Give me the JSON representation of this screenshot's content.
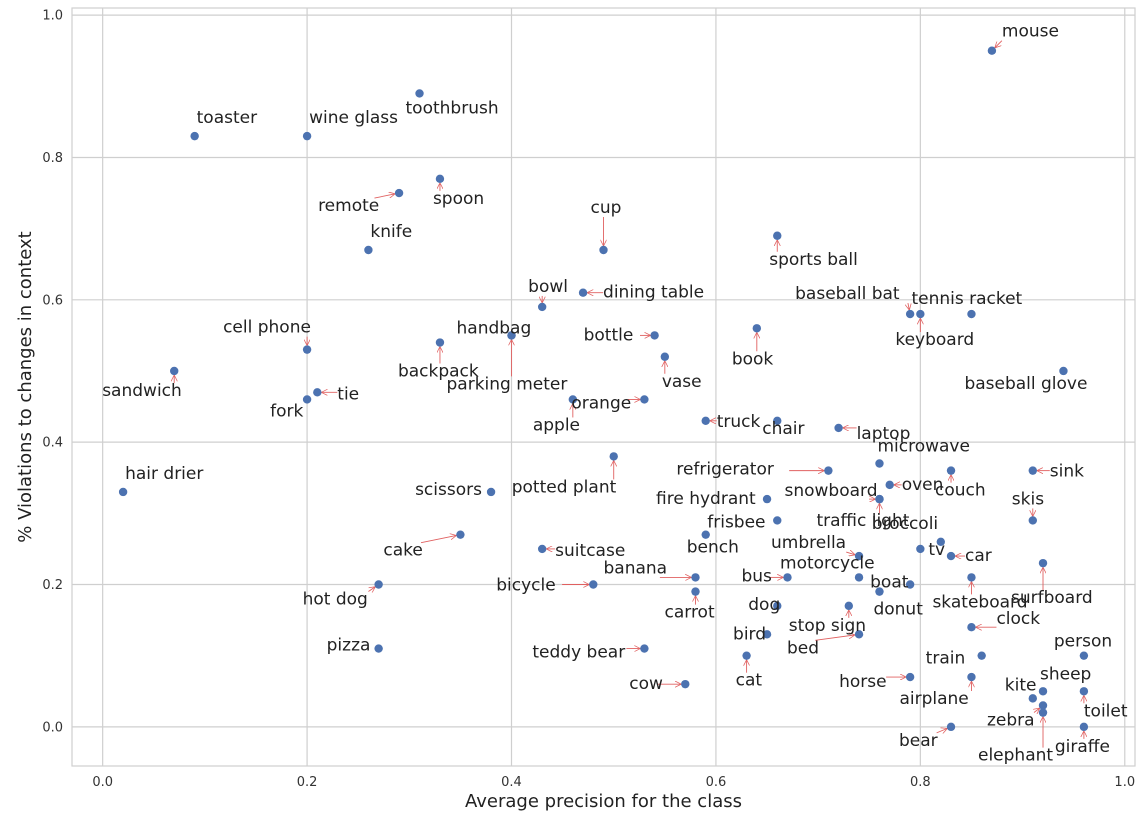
{
  "chart_data": {
    "type": "scatter",
    "title": "",
    "xlabel": "Average precision for the class",
    "ylabel": "% Violations to changes in context",
    "xlim": [
      -0.03,
      1.01
    ],
    "ylim": [
      -0.055,
      1.01
    ],
    "xticks": [
      "0.0",
      "0.2",
      "0.4",
      "0.6",
      "0.8",
      "1.0"
    ],
    "xtick_values": [
      0.0,
      0.2,
      0.4,
      0.6,
      0.8,
      1.0
    ],
    "yticks": [
      "0.0",
      "0.2",
      "0.4",
      "0.6",
      "0.8",
      "1.0"
    ],
    "ytick_values": [
      0.0,
      0.2,
      0.4,
      0.6,
      0.8,
      1.0
    ],
    "grid": true,
    "colors": {
      "point": "#4c72b0",
      "arrow": "#e06060",
      "grid": "#cfcfcf"
    },
    "points": [
      {
        "label": "mouse",
        "x": 0.87,
        "y": 0.95
      },
      {
        "label": "toothbrush",
        "x": 0.31,
        "y": 0.89
      },
      {
        "label": "toaster",
        "x": 0.09,
        "y": 0.83
      },
      {
        "label": "wine glass",
        "x": 0.2,
        "y": 0.83
      },
      {
        "label": "spoon",
        "x": 0.33,
        "y": 0.77
      },
      {
        "label": "remote",
        "x": 0.29,
        "y": 0.75
      },
      {
        "label": "sports ball",
        "x": 0.66,
        "y": 0.69
      },
      {
        "label": "knife",
        "x": 0.26,
        "y": 0.67
      },
      {
        "label": "cup",
        "x": 0.49,
        "y": 0.67
      },
      {
        "label": "dining table",
        "x": 0.47,
        "y": 0.61
      },
      {
        "label": "bowl",
        "x": 0.43,
        "y": 0.59
      },
      {
        "label": "baseball bat",
        "x": 0.79,
        "y": 0.58
      },
      {
        "label": "keyboard",
        "x": 0.8,
        "y": 0.58
      },
      {
        "label": "tennis racket",
        "x": 0.85,
        "y": 0.58
      },
      {
        "label": "book",
        "x": 0.64,
        "y": 0.56
      },
      {
        "label": "handbag",
        "x": 0.4,
        "y": 0.55
      },
      {
        "label": "parking meter",
        "x": 0.4,
        "y": 0.55
      },
      {
        "label": "bottle",
        "x": 0.54,
        "y": 0.55
      },
      {
        "label": "backpack",
        "x": 0.33,
        "y": 0.54
      },
      {
        "label": "cell phone",
        "x": 0.2,
        "y": 0.53
      },
      {
        "label": "vase",
        "x": 0.55,
        "y": 0.52
      },
      {
        "label": "sandwich",
        "x": 0.07,
        "y": 0.5
      },
      {
        "label": "baseball glove",
        "x": 0.94,
        "y": 0.5
      },
      {
        "label": "tie",
        "x": 0.21,
        "y": 0.47
      },
      {
        "label": "fork",
        "x": 0.2,
        "y": 0.46
      },
      {
        "label": "apple",
        "x": 0.46,
        "y": 0.46
      },
      {
        "label": "orange",
        "x": 0.53,
        "y": 0.46
      },
      {
        "label": "truck",
        "x": 0.59,
        "y": 0.43
      },
      {
        "label": "chair",
        "x": 0.66,
        "y": 0.43
      },
      {
        "label": "laptop",
        "x": 0.72,
        "y": 0.42
      },
      {
        "label": "potted plant",
        "x": 0.5,
        "y": 0.38
      },
      {
        "label": "microwave",
        "x": 0.76,
        "y": 0.37
      },
      {
        "label": "refrigerator",
        "x": 0.71,
        "y": 0.36
      },
      {
        "label": "couch",
        "x": 0.83,
        "y": 0.36
      },
      {
        "label": "sink",
        "x": 0.91,
        "y": 0.36
      },
      {
        "label": "oven",
        "x": 0.77,
        "y": 0.34
      },
      {
        "label": "hair drier",
        "x": 0.02,
        "y": 0.33
      },
      {
        "label": "scissors",
        "x": 0.38,
        "y": 0.33
      },
      {
        "label": "fire hydrant",
        "x": 0.65,
        "y": 0.32
      },
      {
        "label": "snowboard",
        "x": 0.76,
        "y": 0.32
      },
      {
        "label": "traffic light",
        "x": 0.76,
        "y": 0.32
      },
      {
        "label": "frisbee",
        "x": 0.66,
        "y": 0.29
      },
      {
        "label": "skis",
        "x": 0.91,
        "y": 0.29
      },
      {
        "label": "cake",
        "x": 0.35,
        "y": 0.27
      },
      {
        "label": "bench",
        "x": 0.59,
        "y": 0.27
      },
      {
        "label": "broccoli",
        "x": 0.82,
        "y": 0.26
      },
      {
        "label": "suitcase",
        "x": 0.43,
        "y": 0.25
      },
      {
        "label": "tv",
        "x": 0.8,
        "y": 0.25
      },
      {
        "label": "umbrella",
        "x": 0.74,
        "y": 0.24
      },
      {
        "label": "car",
        "x": 0.83,
        "y": 0.24
      },
      {
        "label": "surfboard",
        "x": 0.92,
        "y": 0.23
      },
      {
        "label": "banana",
        "x": 0.58,
        "y": 0.21
      },
      {
        "label": "bus",
        "x": 0.67,
        "y": 0.21
      },
      {
        "label": "motorcycle",
        "x": 0.74,
        "y": 0.21
      },
      {
        "label": "skateboard",
        "x": 0.85,
        "y": 0.21
      },
      {
        "label": "hot dog",
        "x": 0.27,
        "y": 0.2
      },
      {
        "label": "bicycle",
        "x": 0.48,
        "y": 0.2
      },
      {
        "label": "boat",
        "x": 0.79,
        "y": 0.2
      },
      {
        "label": "carrot",
        "x": 0.58,
        "y": 0.19
      },
      {
        "label": "donut",
        "x": 0.76,
        "y": 0.19
      },
      {
        "label": "dog",
        "x": 0.66,
        "y": 0.17
      },
      {
        "label": "stop sign",
        "x": 0.73,
        "y": 0.17
      },
      {
        "label": "clock",
        "x": 0.85,
        "y": 0.14
      },
      {
        "label": "bird",
        "x": 0.65,
        "y": 0.13
      },
      {
        "label": "bed",
        "x": 0.74,
        "y": 0.13
      },
      {
        "label": "pizza",
        "x": 0.27,
        "y": 0.11
      },
      {
        "label": "teddy bear",
        "x": 0.53,
        "y": 0.11
      },
      {
        "label": "cat",
        "x": 0.63,
        "y": 0.1
      },
      {
        "label": "train",
        "x": 0.86,
        "y": 0.1
      },
      {
        "label": "person",
        "x": 0.96,
        "y": 0.1
      },
      {
        "label": "horse",
        "x": 0.79,
        "y": 0.07
      },
      {
        "label": "airplane",
        "x": 0.85,
        "y": 0.07
      },
      {
        "label": "cow",
        "x": 0.57,
        "y": 0.06
      },
      {
        "label": "sheep",
        "x": 0.92,
        "y": 0.05
      },
      {
        "label": "toilet",
        "x": 0.96,
        "y": 0.05
      },
      {
        "label": "kite",
        "x": 0.91,
        "y": 0.04
      },
      {
        "label": "zebra",
        "x": 0.92,
        "y": 0.03
      },
      {
        "label": "elephant",
        "x": 0.92,
        "y": 0.02
      },
      {
        "label": "bear",
        "x": 0.83,
        "y": 0.0
      },
      {
        "label": "giraffe",
        "x": 0.96,
        "y": 0.0
      }
    ]
  }
}
